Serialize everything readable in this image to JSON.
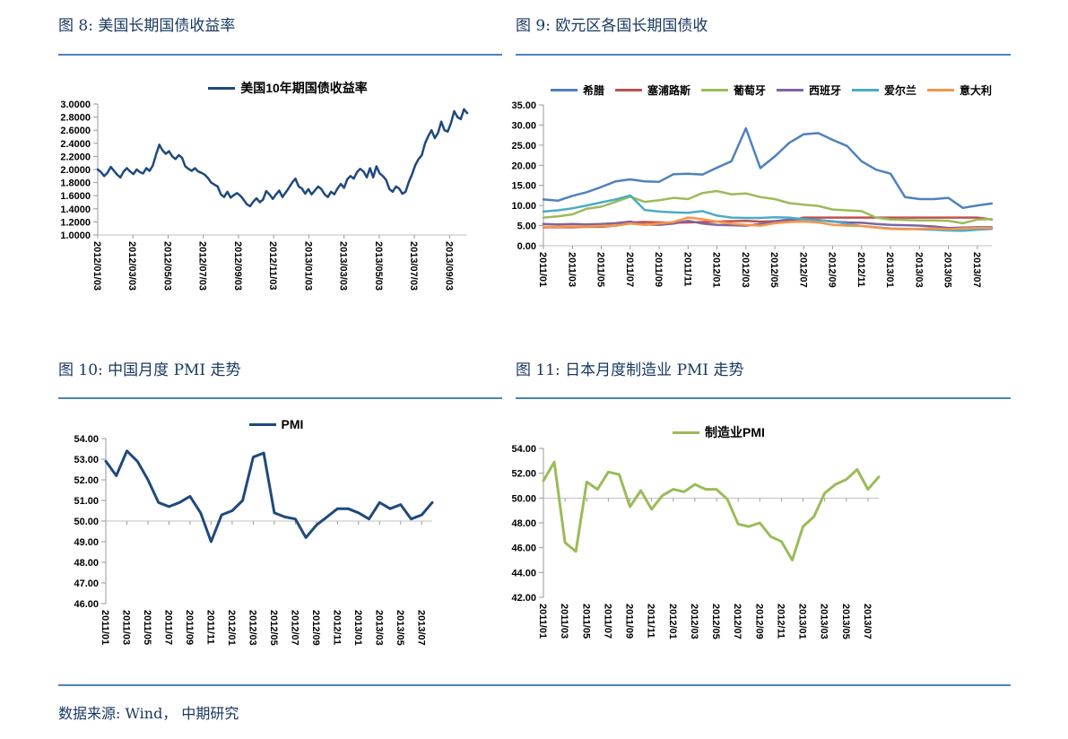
{
  "page": {
    "footer_source": "数据来源: Wind， 中期研究",
    "accent_color": "#4F81BD",
    "title_color": "#17375E"
  },
  "figures": [
    {
      "title": "图 8: 美国长期国债收益率"
    },
    {
      "title": "图 9: 欧元区各国长期国债收"
    },
    {
      "title": "图 10: 中国月度 PMI 走势"
    },
    {
      "title": "图 11: 日本月度制造业 PMI 走势"
    }
  ],
  "chart_data": [
    {
      "type": "line",
      "title": "美国长期国债收益率",
      "legend_position": "top",
      "ylim": [
        1.0,
        3.0
      ],
      "axis_cross": 1.0,
      "y_tick_values": [
        3.0,
        2.8,
        2.6,
        2.4,
        2.2,
        2.0,
        1.8,
        1.6,
        1.4,
        1.2,
        1.0
      ],
      "y_tick_labels": [
        "3.0000",
        "2.8000",
        "2.6000",
        "2.4000",
        "2.2000",
        "2.0000",
        "1.8000",
        "1.6000",
        "1.4000",
        "1.2000",
        "1.0000"
      ],
      "x_tick_labels": [
        "2012/01/03",
        "2012/03/03",
        "2012/05/03",
        "2012/07/03",
        "2012/09/03",
        "2012/11/03",
        "2013/01/03",
        "2013/03/03",
        "2013/05/03",
        "2013/07/03",
        "2013/09/03"
      ],
      "series": [
        {
          "name": "美国10年期国债收益率",
          "color": "#1F497D",
          "width": 2.5,
          "values": [
            2.0,
            1.96,
            1.9,
            1.95,
            2.04,
            1.98,
            1.92,
            1.88,
            1.97,
            2.02,
            1.97,
            1.93,
            2.0,
            1.96,
            1.94,
            2.02,
            1.98,
            2.06,
            2.23,
            2.38,
            2.29,
            2.24,
            2.28,
            2.2,
            2.16,
            2.22,
            2.18,
            2.05,
            2.01,
            1.98,
            2.02,
            1.97,
            1.95,
            1.92,
            1.87,
            1.8,
            1.77,
            1.74,
            1.62,
            1.58,
            1.66,
            1.57,
            1.61,
            1.64,
            1.6,
            1.54,
            1.47,
            1.44,
            1.51,
            1.56,
            1.5,
            1.54,
            1.67,
            1.62,
            1.55,
            1.62,
            1.68,
            1.58,
            1.65,
            1.72,
            1.8,
            1.86,
            1.74,
            1.71,
            1.63,
            1.7,
            1.62,
            1.68,
            1.74,
            1.7,
            1.62,
            1.58,
            1.66,
            1.62,
            1.71,
            1.78,
            1.72,
            1.85,
            1.9,
            1.86,
            1.96,
            2.01,
            1.97,
            1.88,
            2.02,
            1.88,
            2.05,
            1.94,
            1.9,
            1.84,
            1.7,
            1.66,
            1.74,
            1.71,
            1.63,
            1.66,
            1.81,
            1.93,
            2.07,
            2.16,
            2.22,
            2.4,
            2.51,
            2.6,
            2.48,
            2.56,
            2.73,
            2.6,
            2.58,
            2.71,
            2.89,
            2.8,
            2.77,
            2.92,
            2.86
          ]
        }
      ]
    },
    {
      "type": "line",
      "title": "欧元区各国长期国债收益率",
      "legend_position": "top",
      "ylim": [
        0,
        35
      ],
      "axis_cross": 0,
      "y_tick_values": [
        35,
        30,
        25,
        20,
        15,
        10,
        5,
        0
      ],
      "y_tick_labels": [
        "35.00",
        "30.00",
        "25.00",
        "20.00",
        "15.00",
        "10.00",
        "5.00",
        "0.00"
      ],
      "x_tick_labels": [
        "2011/01",
        "2011/03",
        "2011/05",
        "2011/07",
        "2011/09",
        "2011/11",
        "2012/01",
        "2012/03",
        "2012/05",
        "2012/07",
        "2012/09",
        "2012/11",
        "2013/01",
        "2013/03",
        "2013/05",
        "2013/07"
      ],
      "series": [
        {
          "name": "希腊",
          "color": "#4F81BD",
          "width": 2.5,
          "values": [
            11.5,
            11.2,
            12.4,
            13.3,
            14.6,
            16.0,
            16.5,
            16.0,
            15.9,
            17.8,
            17.9,
            17.7,
            19.4,
            21.0,
            29.2,
            19.3,
            22.2,
            25.6,
            27.7,
            28.0,
            26.3,
            24.8,
            21.0,
            18.9,
            17.9,
            12.1,
            11.6,
            11.6,
            11.9,
            9.4,
            10.0,
            10.5
          ]
        },
        {
          "name": "塞浦路斯",
          "color": "#C0504D",
          "width": 2.5,
          "values": [
            4.6,
            4.6,
            4.6,
            4.7,
            4.7,
            5.0,
            5.8,
            5.9,
            5.8,
            5.7,
            5.8,
            5.9,
            6.0,
            6.1,
            6.2,
            6.0,
            6.1,
            6.2,
            7.0,
            7.0,
            7.0,
            7.0,
            7.0,
            7.0,
            7.0,
            7.0,
            7.0,
            7.0,
            7.0,
            7.0,
            7.0,
            6.5
          ]
        },
        {
          "name": "葡萄牙",
          "color": "#9BBB59",
          "width": 2.5,
          "values": [
            7.0,
            7.3,
            7.8,
            9.2,
            9.7,
            10.9,
            12.2,
            10.9,
            11.3,
            11.9,
            11.6,
            13.1,
            13.6,
            12.8,
            13.0,
            12.1,
            11.6,
            10.6,
            10.2,
            9.9,
            9.0,
            8.8,
            8.6,
            7.0,
            6.5,
            6.4,
            6.3,
            6.3,
            6.2,
            5.6,
            6.5,
            6.6
          ]
        },
        {
          "name": "西班牙",
          "color": "#8064A2",
          "width": 2.5,
          "values": [
            5.4,
            5.3,
            5.4,
            5.3,
            5.4,
            5.6,
            6.0,
            5.3,
            5.2,
            5.5,
            6.2,
            5.5,
            5.2,
            5.1,
            5.0,
            5.4,
            6.1,
            6.5,
            6.6,
            6.4,
            6.0,
            5.8,
            5.7,
            5.4,
            5.2,
            5.1,
            5.0,
            4.8,
            4.4,
            4.5,
            4.6,
            4.6
          ]
        },
        {
          "name": "爱尔兰",
          "color": "#4BACC6",
          "width": 2.5,
          "values": [
            8.5,
            8.8,
            9.3,
            10.0,
            10.8,
            11.5,
            12.5,
            8.9,
            8.5,
            8.3,
            8.2,
            8.6,
            7.5,
            7.0,
            6.9,
            6.9,
            7.1,
            7.0,
            6.6,
            6.3,
            6.1,
            5.4,
            4.9,
            4.6,
            4.3,
            4.2,
            4.1,
            4.0,
            3.8,
            3.7,
            4.0,
            4.2
          ]
        },
        {
          "name": "意大利",
          "color": "#F79646",
          "width": 2.5,
          "values": [
            4.7,
            4.7,
            4.8,
            4.8,
            4.9,
            5.0,
            5.5,
            5.2,
            5.5,
            5.9,
            7.0,
            6.6,
            6.0,
            5.5,
            5.2,
            5.0,
            5.6,
            5.9,
            6.0,
            5.8,
            5.2,
            5.0,
            4.9,
            4.5,
            4.2,
            4.1,
            4.2,
            4.3,
            4.1,
            4.3,
            4.4,
            4.4
          ]
        }
      ]
    },
    {
      "type": "line",
      "title": "中国月度 PMI 走势",
      "legend_position": "top",
      "ylim": [
        46,
        54
      ],
      "axis_cross": 50,
      "y_tick_values": [
        54,
        53,
        52,
        51,
        50,
        49,
        48,
        47,
        46
      ],
      "y_tick_labels": [
        "54.00",
        "53.00",
        "52.00",
        "51.00",
        "50.00",
        "49.00",
        "48.00",
        "47.00",
        "46.00"
      ],
      "x_tick_labels": [
        "2011/01",
        "2011/03",
        "2011/05",
        "2011/07",
        "2011/09",
        "2011/11",
        "2012/01",
        "2012/03",
        "2012/05",
        "2012/07",
        "2012/09",
        "2012/11",
        "2013/01",
        "2013/03",
        "2013/05",
        "2013/07"
      ],
      "series": [
        {
          "name": "PMI",
          "color": "#1F497D",
          "width": 3,
          "values": [
            52.9,
            52.2,
            53.4,
            52.9,
            52.0,
            50.9,
            50.7,
            50.9,
            51.2,
            50.4,
            49.0,
            50.3,
            50.5,
            51.0,
            53.1,
            53.3,
            50.4,
            50.2,
            50.1,
            49.2,
            49.8,
            50.2,
            50.6,
            50.6,
            50.4,
            50.1,
            50.9,
            50.6,
            50.8,
            50.1,
            50.3,
            50.9
          ]
        }
      ]
    },
    {
      "type": "line",
      "title": "日本月度制造业 PMI 走势",
      "legend_position": "top",
      "ylim": [
        42,
        54
      ],
      "axis_cross": 50,
      "y_tick_values": [
        54,
        52,
        50,
        48,
        46,
        44,
        42
      ],
      "y_tick_labels": [
        "54.00",
        "52.00",
        "50.00",
        "48.00",
        "46.00",
        "44.00",
        "42.00"
      ],
      "x_tick_labels": [
        "2011/01",
        "2011/03",
        "2011/05",
        "2011/07",
        "2011/09",
        "2011/11",
        "2012/01",
        "2012/03",
        "2012/05",
        "2012/07",
        "2012/09",
        "2012/11",
        "2013/01",
        "2013/03",
        "2013/05",
        "2013/07"
      ],
      "series": [
        {
          "name": "制造业PMI",
          "color": "#9BBB59",
          "width": 3,
          "values": [
            51.4,
            52.9,
            46.4,
            45.7,
            51.3,
            50.7,
            52.1,
            51.9,
            49.3,
            50.6,
            49.1,
            50.2,
            50.7,
            50.5,
            51.1,
            50.7,
            50.7,
            49.9,
            47.9,
            47.7,
            48.0,
            46.9,
            46.5,
            45.0,
            47.7,
            48.5,
            50.4,
            51.1,
            51.5,
            52.3,
            50.7,
            51.7
          ]
        }
      ]
    }
  ]
}
